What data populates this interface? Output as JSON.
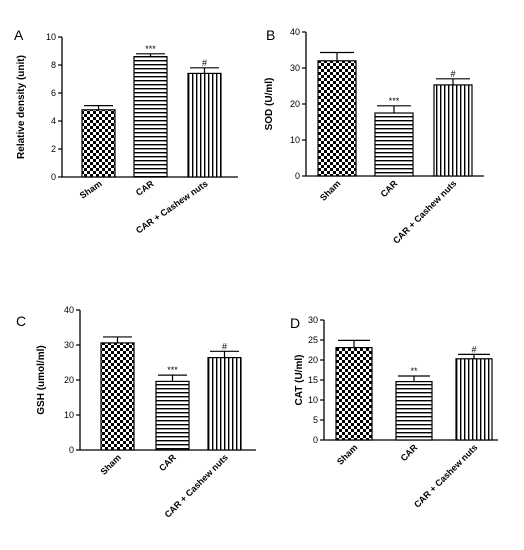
{
  "chart_data": [
    {
      "type": "bar",
      "panel_label": "A",
      "categories": [
        "Sham",
        "CAR",
        "CAR + Cashew nuts"
      ],
      "values": [
        4.8,
        8.6,
        7.4
      ],
      "errors": [
        0.3,
        0.2,
        0.4
      ],
      "significance": [
        "",
        "***",
        "#"
      ],
      "ylabel": "Relative density (unit)",
      "ylim": [
        0,
        10
      ],
      "yticks": [
        0,
        2,
        4,
        6,
        8,
        10
      ],
      "tick_labels": [
        "0",
        "2",
        "4",
        "6",
        "8",
        "10"
      ],
      "patterns": [
        "checker",
        "hstripe",
        "vstripe"
      ]
    },
    {
      "type": "bar",
      "panel_label": "B",
      "categories": [
        "Sham",
        "CAR",
        "CAR + Cashew nuts"
      ],
      "values": [
        32,
        17.5,
        25.3
      ],
      "errors": [
        2.3,
        2.0,
        1.7
      ],
      "significance": [
        "",
        "***",
        "#"
      ],
      "ylabel": "SOD (U/ml)",
      "ylim": [
        0,
        40
      ],
      "yticks": [
        0,
        10,
        20,
        30,
        40
      ],
      "tick_labels": [
        "0",
        "10",
        "20",
        "30",
        "40"
      ],
      "patterns": [
        "checker",
        "hstripe",
        "vstripe"
      ]
    },
    {
      "type": "bar",
      "panel_label": "C",
      "categories": [
        "Sham",
        "CAR",
        "CAR + Cashew nuts"
      ],
      "values": [
        30.6,
        19.6,
        26.4
      ],
      "errors": [
        1.7,
        1.8,
        1.8
      ],
      "significance": [
        "",
        "***",
        "#"
      ],
      "ylabel": "GSH (umol/ml)",
      "ylim": [
        0,
        40
      ],
      "yticks": [
        0,
        10,
        20,
        30,
        40
      ],
      "tick_labels": [
        "0",
        "10",
        "20",
        "30",
        "40"
      ],
      "patterns": [
        "checker",
        "hstripe",
        "vstripe"
      ]
    },
    {
      "type": "bar",
      "panel_label": "D",
      "categories": [
        "Sham",
        "CAR",
        "CAR + Cashew nuts"
      ],
      "values": [
        23.1,
        14.6,
        20.3
      ],
      "errors": [
        1.8,
        1.4,
        1.1
      ],
      "significance": [
        "",
        "**",
        "#"
      ],
      "ylabel": "CAT (U/ml)",
      "ylim": [
        0,
        30
      ],
      "yticks": [
        0,
        5,
        10,
        15,
        20,
        25,
        30
      ],
      "tick_labels": [
        "0",
        "5",
        "10",
        "15",
        "20",
        "25",
        "30"
      ],
      "patterns": [
        "checker",
        "hstripe",
        "vstripe"
      ]
    }
  ]
}
